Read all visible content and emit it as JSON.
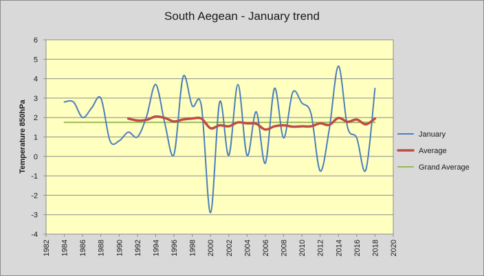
{
  "chart_data": {
    "type": "line",
    "title": "South Aegean - January trend",
    "xlabel": "",
    "ylabel": "Temperature 850hPa",
    "xlim": [
      1982,
      2020
    ],
    "ylim": [
      -4,
      6
    ],
    "xticks": [
      "1982",
      "1984",
      "1986",
      "1988",
      "1990",
      "1992",
      "1994",
      "1996",
      "1998",
      "2000",
      "2002",
      "2004",
      "2006",
      "2008",
      "2010",
      "2012",
      "2014",
      "2016",
      "2018",
      "2020"
    ],
    "yticks": [
      "6",
      "5",
      "4",
      "3",
      "2",
      "1",
      "0",
      "-1",
      "-2",
      "-3",
      "-4"
    ],
    "grid": true,
    "legend_position": "right",
    "colors": {
      "plot_bg": "#ffffc0",
      "frame_bg": "#d9d9d9",
      "grid": "#8c8c8c"
    },
    "series": [
      {
        "name": "January",
        "color": "#4a7ebb",
        "x": [
          1984,
          1985,
          1986,
          1987,
          1988,
          1989,
          1990,
          1991,
          1992,
          1993,
          1994,
          1995,
          1996,
          1997,
          1998,
          1999,
          2000,
          2001,
          2002,
          2003,
          2004,
          2005,
          2006,
          2007,
          2008,
          2009,
          2010,
          2011,
          2012,
          2013,
          2014,
          2015,
          2016,
          2017,
          2018
        ],
        "y": [
          2.8,
          2.8,
          2.0,
          2.5,
          3.0,
          0.8,
          0.8,
          1.25,
          1.0,
          2.05,
          3.7,
          1.7,
          0.1,
          4.1,
          2.6,
          2.6,
          -2.9,
          2.8,
          0.05,
          3.7,
          0.05,
          2.3,
          -0.35,
          3.5,
          0.95,
          3.3,
          2.75,
          2.2,
          -0.75,
          1.4,
          4.65,
          1.5,
          0.95,
          -0.7,
          3.5
        ]
      },
      {
        "name": "Average",
        "color": "#be4b48",
        "x": [
          1991,
          1992,
          1993,
          1994,
          1995,
          1996,
          1997,
          1998,
          1999,
          2000,
          2001,
          2002,
          2003,
          2004,
          2005,
          2006,
          2007,
          2008,
          2009,
          2010,
          2011,
          2012,
          2013,
          2014,
          2015,
          2016,
          2017,
          2018
        ],
        "y": [
          1.95,
          1.85,
          1.88,
          2.05,
          1.98,
          1.8,
          1.9,
          1.95,
          1.95,
          1.45,
          1.6,
          1.55,
          1.75,
          1.7,
          1.68,
          1.38,
          1.55,
          1.6,
          1.53,
          1.55,
          1.55,
          1.7,
          1.62,
          1.98,
          1.78,
          1.9,
          1.65,
          1.95
        ]
      },
      {
        "name": "Grand Average",
        "color": "#98b954",
        "x": [
          1984,
          2018
        ],
        "y": [
          1.75,
          1.75
        ]
      }
    ]
  }
}
